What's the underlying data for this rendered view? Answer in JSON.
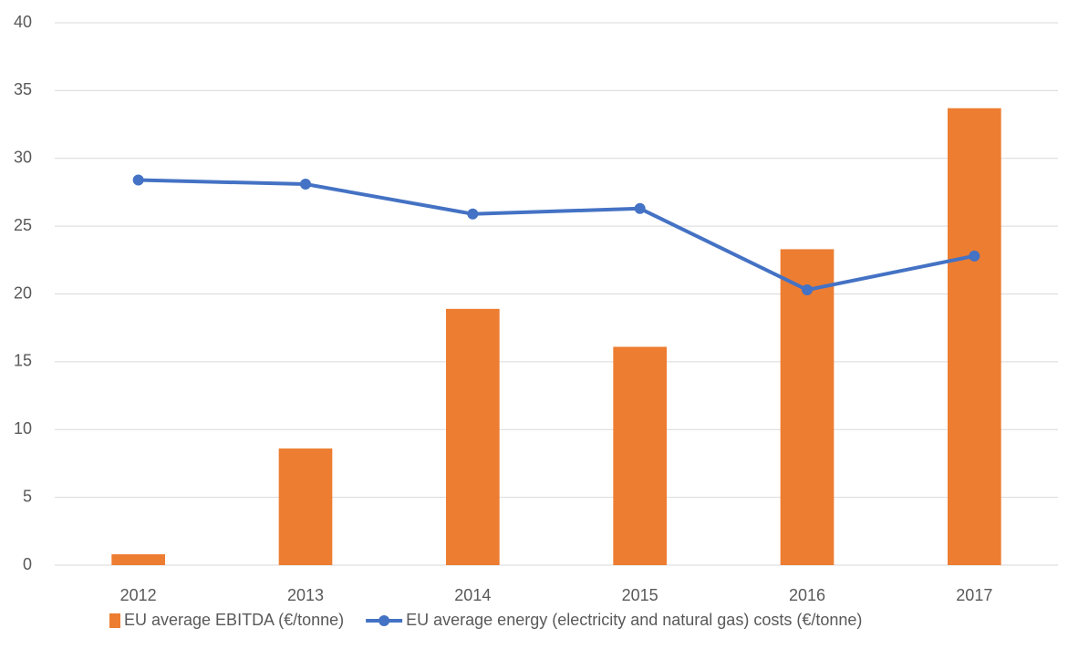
{
  "chart_data": {
    "type": "bar",
    "categories": [
      "2012",
      "2013",
      "2014",
      "2015",
      "2016",
      "2017"
    ],
    "series": [
      {
        "name": "EU average EBITDA (€/tonne)",
        "type": "bar",
        "color": "#ed7d31",
        "values": [
          0.8,
          8.6,
          18.9,
          16.1,
          23.3,
          33.7
        ]
      },
      {
        "name": "EU average energy (electricity and natural gas) costs (€/tonne)",
        "type": "line",
        "color": "#4472c4",
        "values": [
          28.4,
          28.1,
          25.9,
          26.3,
          20.3,
          22.8
        ]
      }
    ],
    "ylim": [
      0,
      40
    ],
    "yticks": [
      0,
      5,
      10,
      15,
      20,
      25,
      30,
      35,
      40
    ],
    "grid": true,
    "legend": "bottom"
  }
}
